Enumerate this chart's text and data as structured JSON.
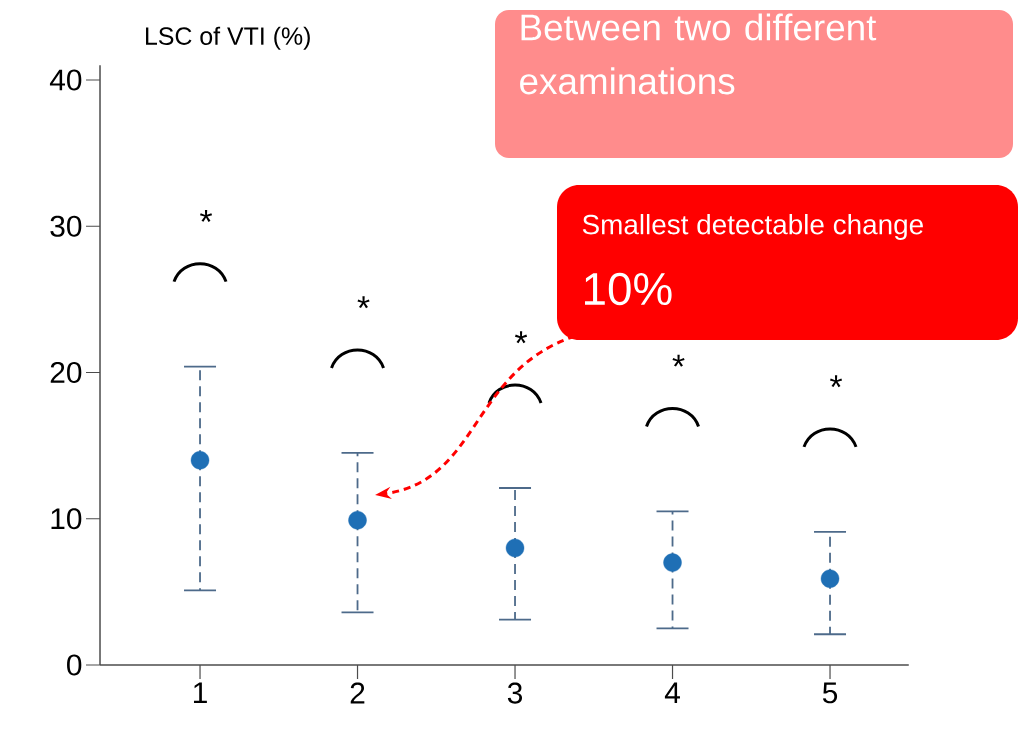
{
  "chart_data": {
    "type": "scatter",
    "ylabel": "LSC of VTI (%)",
    "categories": [
      "1",
      "2",
      "3",
      "4",
      "5"
    ],
    "values": [
      14.0,
      9.9,
      8.0,
      7.0,
      5.9
    ],
    "errors": [
      [
        5.1,
        20.4
      ],
      [
        3.6,
        14.5
      ],
      [
        3.1,
        12.1
      ],
      [
        2.5,
        10.5
      ],
      [
        2.1,
        9.1
      ]
    ],
    "color": "#1f6fb5",
    "marker": "circle",
    "ylim": [
      0,
      41
    ],
    "yticks": [
      0,
      10,
      20,
      30,
      40
    ],
    "grid": false,
    "annotations": [
      "Between two different examinations",
      "Smallest detectable change",
      "10%",
      "*",
      "*",
      "*",
      "*",
      "*"
    ]
  }
}
